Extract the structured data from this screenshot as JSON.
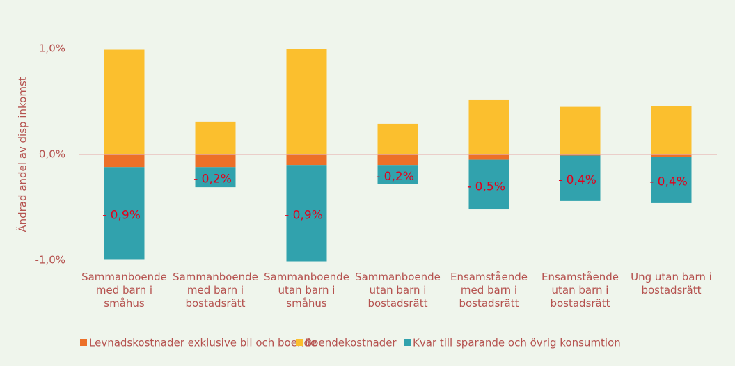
{
  "chart_data": {
    "type": "stacked-bar",
    "y_label": "Ändrad andel av disp inkomst",
    "categories": [
      "Sammanboende med barn i småhus",
      "Sammanboende med barn i bostadsrätt",
      "Sammanboende utan barn i småhus",
      "Sammanboende utan barn i bostadsrätt",
      "Ensamstående med barn i bostadsrätt",
      "Ensamstående utan barn i bostadsrätt",
      "Ung utan barn i bostadsrätt"
    ],
    "series": [
      {
        "name": "Levnadskostnader exklusive bil och boende",
        "color": "#ec7028",
        "values": [
          -0.12,
          -0.12,
          -0.1,
          -0.1,
          -0.05,
          -0.01,
          -0.02
        ]
      },
      {
        "name": "Boendekostnader",
        "color": "#fbbf2e",
        "values": [
          0.99,
          0.31,
          1.0,
          0.29,
          0.52,
          0.45,
          0.46
        ]
      },
      {
        "name": "Kvar till sparande och övrig konsumtion",
        "color": "#31a2ad",
        "values": [
          -0.87,
          -0.19,
          -0.91,
          -0.18,
          -0.47,
          -0.43,
          -0.44
        ],
        "value_labels": [
          "- 0,9%",
          "- 0,2%",
          "- 0,9%",
          "- 0,2%",
          "- 0,5%",
          "- 0,4%",
          "- 0,4%"
        ]
      }
    ],
    "ylim": [
      -1.0,
      1.0
    ],
    "yticks": [
      {
        "value": -1.0,
        "label": "-1,0%"
      },
      {
        "value": 0,
        "label": "0,0%"
      },
      {
        "value": 1.0,
        "label": "1,0%"
      }
    ],
    "grid": false,
    "legend": "bottom"
  }
}
